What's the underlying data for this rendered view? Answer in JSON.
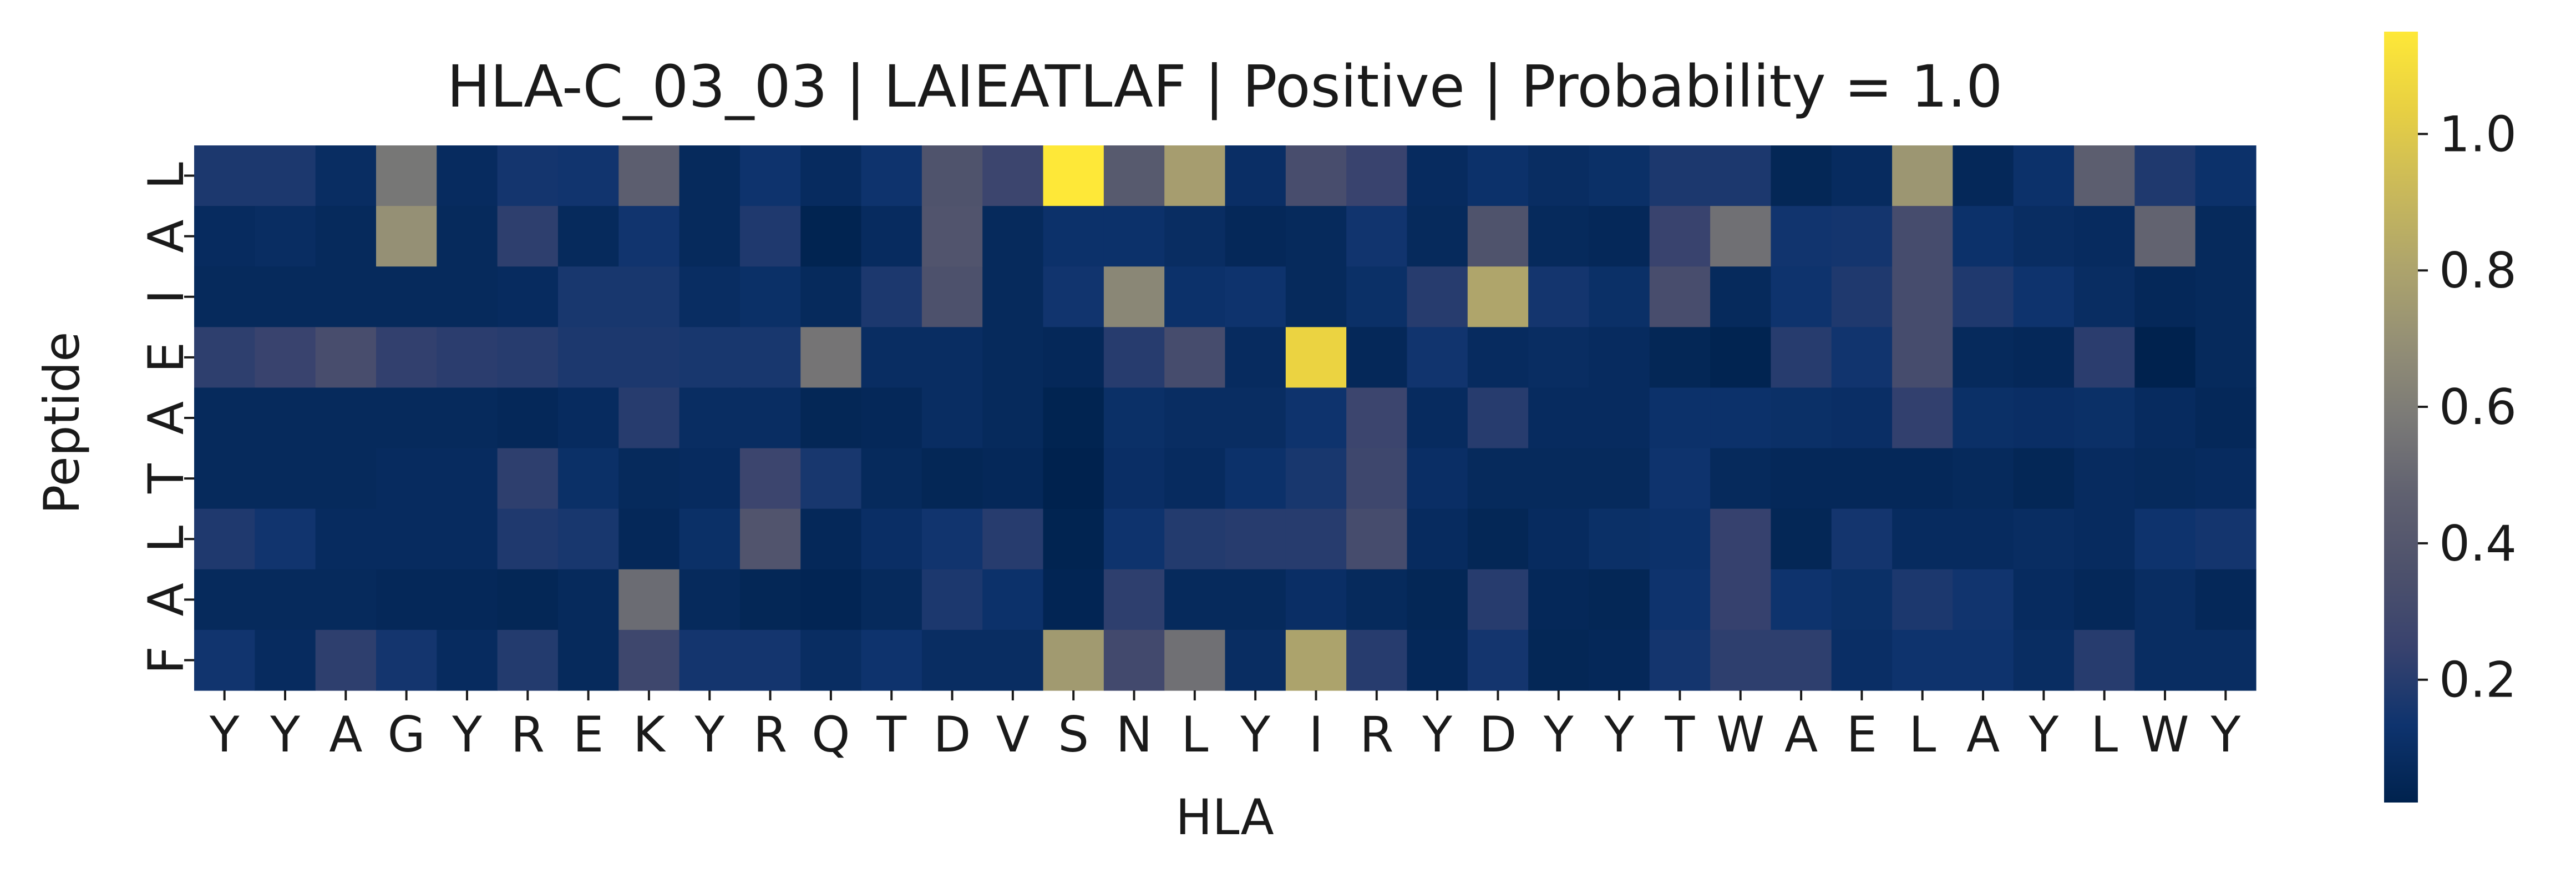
{
  "chart_data": {
    "type": "heatmap",
    "title": "HLA-C_03_03 | LAIEATLAF | Positive | Probability = 1.0",
    "xlabel": "HLA",
    "ylabel": "Peptide",
    "x_categories": [
      "Y",
      "Y",
      "A",
      "G",
      "Y",
      "R",
      "E",
      "K",
      "Y",
      "R",
      "Q",
      "T",
      "D",
      "V",
      "S",
      "N",
      "L",
      "Y",
      "I",
      "R",
      "Y",
      "D",
      "Y",
      "Y",
      "T",
      "W",
      "A",
      "E",
      "L",
      "A",
      "Y",
      "L",
      "W",
      "Y"
    ],
    "y_categories": [
      "L",
      "A",
      "I",
      "E",
      "A",
      "T",
      "L",
      "A",
      "F"
    ],
    "colormap": "cividis",
    "color_range": [
      0.02,
      1.15
    ],
    "colorbar_ticks": [
      0.2,
      0.4,
      0.6,
      0.8,
      1.0
    ],
    "colorbar_tick_labels": [
      "0.2",
      "0.4",
      "0.6",
      "0.8",
      "1.0"
    ],
    "values": [
      [
        0.17,
        0.17,
        0.09,
        0.57,
        0.08,
        0.15,
        0.14,
        0.45,
        0.07,
        0.13,
        0.08,
        0.13,
        0.37,
        0.27,
        1.15,
        0.42,
        0.77,
        0.1,
        0.33,
        0.25,
        0.08,
        0.12,
        0.09,
        0.11,
        0.17,
        0.17,
        0.05,
        0.08,
        0.73,
        0.06,
        0.12,
        0.45,
        0.18,
        0.12
      ],
      [
        0.08,
        0.09,
        0.07,
        0.7,
        0.07,
        0.22,
        0.07,
        0.14,
        0.07,
        0.18,
        0.03,
        0.08,
        0.38,
        0.07,
        0.12,
        0.12,
        0.09,
        0.06,
        0.07,
        0.14,
        0.07,
        0.37,
        0.07,
        0.06,
        0.25,
        0.54,
        0.14,
        0.15,
        0.32,
        0.12,
        0.09,
        0.08,
        0.48,
        0.07
      ],
      [
        0.07,
        0.07,
        0.07,
        0.07,
        0.07,
        0.08,
        0.16,
        0.16,
        0.09,
        0.11,
        0.07,
        0.17,
        0.36,
        0.07,
        0.14,
        0.65,
        0.12,
        0.13,
        0.07,
        0.11,
        0.2,
        0.81,
        0.15,
        0.11,
        0.33,
        0.07,
        0.13,
        0.18,
        0.32,
        0.18,
        0.13,
        0.09,
        0.06,
        0.07
      ],
      [
        0.22,
        0.25,
        0.33,
        0.23,
        0.21,
        0.2,
        0.17,
        0.17,
        0.16,
        0.16,
        0.56,
        0.09,
        0.09,
        0.07,
        0.06,
        0.2,
        0.32,
        0.08,
        1.05,
        0.06,
        0.14,
        0.08,
        0.09,
        0.08,
        0.05,
        0.03,
        0.2,
        0.14,
        0.32,
        0.07,
        0.06,
        0.21,
        0.02,
        0.07
      ],
      [
        0.07,
        0.07,
        0.07,
        0.07,
        0.07,
        0.06,
        0.08,
        0.2,
        0.09,
        0.09,
        0.05,
        0.06,
        0.09,
        0.07,
        0.03,
        0.11,
        0.09,
        0.09,
        0.13,
        0.27,
        0.08,
        0.2,
        0.08,
        0.08,
        0.12,
        0.12,
        0.11,
        0.1,
        0.23,
        0.11,
        0.1,
        0.11,
        0.08,
        0.06
      ],
      [
        0.07,
        0.07,
        0.07,
        0.08,
        0.08,
        0.22,
        0.11,
        0.07,
        0.08,
        0.27,
        0.16,
        0.07,
        0.05,
        0.06,
        0.02,
        0.1,
        0.08,
        0.12,
        0.16,
        0.28,
        0.1,
        0.07,
        0.07,
        0.07,
        0.13,
        0.07,
        0.06,
        0.06,
        0.06,
        0.07,
        0.05,
        0.08,
        0.07,
        0.08
      ],
      [
        0.18,
        0.14,
        0.08,
        0.08,
        0.08,
        0.18,
        0.16,
        0.06,
        0.11,
        0.38,
        0.06,
        0.1,
        0.14,
        0.2,
        0.03,
        0.13,
        0.19,
        0.2,
        0.2,
        0.32,
        0.08,
        0.05,
        0.08,
        0.11,
        0.12,
        0.24,
        0.05,
        0.15,
        0.08,
        0.08,
        0.09,
        0.08,
        0.13,
        0.15
      ],
      [
        0.07,
        0.07,
        0.07,
        0.06,
        0.06,
        0.05,
        0.07,
        0.52,
        0.07,
        0.05,
        0.04,
        0.07,
        0.17,
        0.12,
        0.04,
        0.22,
        0.07,
        0.07,
        0.1,
        0.07,
        0.05,
        0.2,
        0.06,
        0.05,
        0.13,
        0.24,
        0.13,
        0.11,
        0.17,
        0.14,
        0.08,
        0.06,
        0.09,
        0.06
      ],
      [
        0.14,
        0.08,
        0.22,
        0.15,
        0.08,
        0.19,
        0.07,
        0.28,
        0.15,
        0.15,
        0.09,
        0.13,
        0.09,
        0.09,
        0.75,
        0.3,
        0.54,
        0.09,
        0.8,
        0.2,
        0.06,
        0.15,
        0.05,
        0.06,
        0.15,
        0.22,
        0.22,
        0.1,
        0.13,
        0.13,
        0.09,
        0.2,
        0.09,
        0.09
      ]
    ]
  }
}
